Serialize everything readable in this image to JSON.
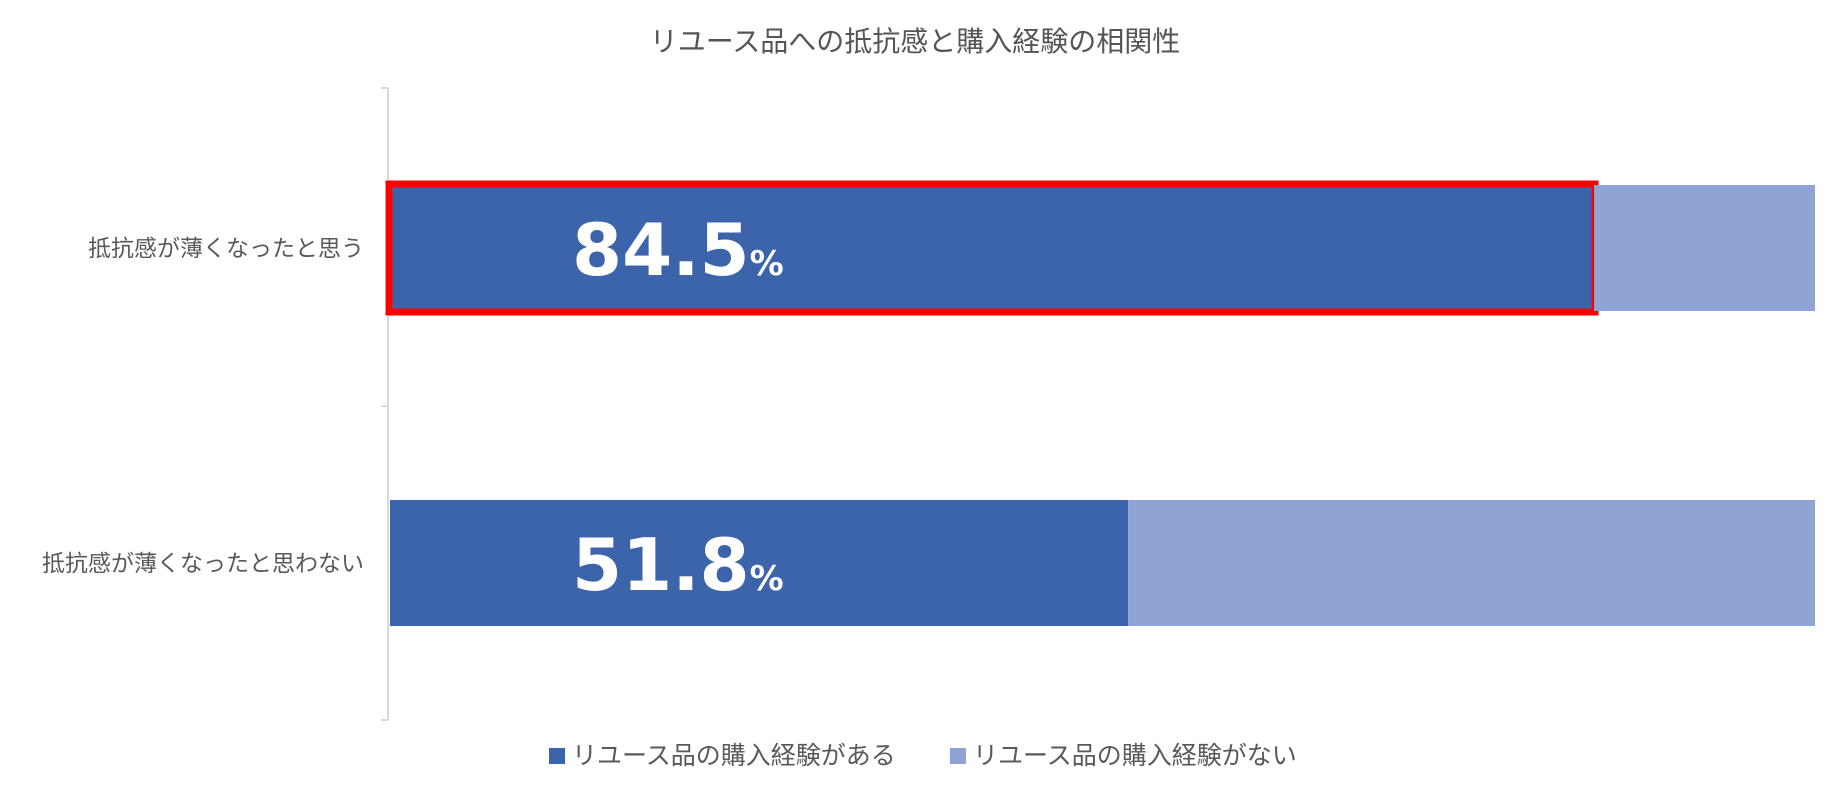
{
  "chart_data": {
    "type": "bar",
    "orientation": "horizontal",
    "stacked": "percent",
    "title": "リユース品への抵抗感と購入経験の相関性",
    "categories": [
      "抵抗感が薄くなったと思う",
      "抵抗感が薄くなったと思わない"
    ],
    "series": [
      {
        "name": "リユース品の購入経験がある",
        "values": [
          84.5,
          51.8
        ],
        "color": "#3c64ab"
      },
      {
        "name": "リユース品の購入経験がない",
        "values": [
          15.5,
          48.2
        ],
        "color": "#8fa3d4"
      }
    ],
    "data_labels": [
      {
        "value": "84.5",
        "unit": "%"
      },
      {
        "value": "51.8",
        "unit": "%"
      }
    ],
    "xlim": [
      0,
      100
    ],
    "grid": false,
    "legend_position": "bottom",
    "highlight": {
      "category_index": 0,
      "series_index": 0,
      "color": "#ff0000"
    }
  }
}
